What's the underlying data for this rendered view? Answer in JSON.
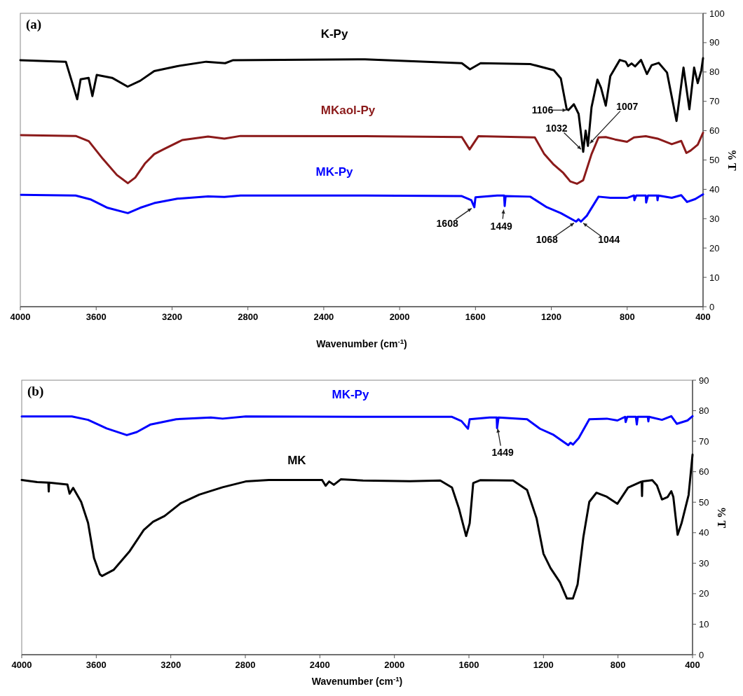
{
  "chart_data": [
    {
      "type": "line",
      "title": "(a)",
      "xlabel": "Wavenumber (cm$^{-1}$)",
      "ylabel": "% T",
      "xlim": [
        4000,
        400
      ],
      "xticks": [
        4000,
        3600,
        3200,
        2800,
        2400,
        2000,
        1600,
        1200,
        800,
        400
      ],
      "ylim": [
        0,
        100
      ],
      "yticks": [
        0,
        10,
        20,
        30,
        40,
        50,
        60,
        70,
        80,
        90,
        100
      ],
      "series": [
        {
          "name": "K-Py",
          "color": "#000000",
          "x": [
            4000,
            3760,
            3700,
            3682,
            3640,
            3620,
            3597,
            3516,
            3434,
            3368,
            3294,
            3172,
            3020,
            2920,
            2880,
            2182,
            1672,
            1629,
            1573,
            1311,
            1187,
            1150,
            1119,
            1110,
            1081,
            1056,
            1032,
            1019,
            1007,
            988,
            957,
            938,
            913,
            889,
            839,
            808,
            795,
            777,
            758,
            727,
            696,
            671,
            634,
            590,
            540,
            503,
            472,
            447,
            428,
            409,
            400
          ],
          "values": [
            84,
            83.5,
            70.7,
            77.5,
            78,
            71.8,
            79,
            78,
            75,
            77,
            80.3,
            82,
            83.5,
            83,
            84,
            84.3,
            83,
            80.9,
            83,
            82.7,
            80.6,
            77.8,
            67.3,
            67,
            69,
            65.7,
            52.8,
            60,
            54.8,
            68,
            77.4,
            74.6,
            68.5,
            78.6,
            84.1,
            83.5,
            82,
            82.9,
            81.9,
            84.1,
            79.3,
            82.3,
            83.1,
            79.8,
            63.3,
            81.5,
            67.3,
            81.5,
            76.2,
            80.6,
            84.7
          ]
        },
        {
          "name": "MKaol-Py",
          "color": "#8b1a1a",
          "x": [
            3996,
            3708,
            3639,
            3565,
            3491,
            3433,
            3394,
            3343,
            3294,
            3246,
            3146,
            3010,
            2924,
            2839,
            2182,
            1672,
            1631,
            1585,
            1287,
            1237,
            1187,
            1137,
            1100,
            1065,
            1032,
            988,
            951,
            913,
            864,
            801,
            764,
            702,
            640,
            565,
            515,
            488,
            466,
            428,
            400
          ],
          "values": [
            58.5,
            58.2,
            56.4,
            50.4,
            44.9,
            42.1,
            44,
            48.8,
            52,
            53.6,
            56.8,
            58,
            57.3,
            58.2,
            58.1,
            57.8,
            53.6,
            58.1,
            57.7,
            52,
            48.4,
            45.6,
            42.7,
            41.9,
            43.1,
            52,
            57.7,
            57.8,
            57,
            56.2,
            57.7,
            58.1,
            57.3,
            55.4,
            56.5,
            52.4,
            53.2,
            55.2,
            59.3
          ]
        },
        {
          "name": "MK-Py",
          "color": "#0000ff",
          "x": [
            3996,
            3708,
            3627,
            3540,
            3433,
            3368,
            3294,
            3172,
            3010,
            2924,
            2839,
            2182,
            1672,
            1622,
            1606,
            1600,
            1486,
            1449,
            1446,
            1441,
            1311,
            1224,
            1150,
            1069,
            1057,
            1044,
            1013,
            951,
            889,
            801,
            764,
            762,
            752,
            702,
            700,
            690,
            642,
            640,
            636,
            565,
            515,
            484,
            441,
            400
          ],
          "values": [
            38.1,
            37.9,
            36.5,
            33.7,
            31.9,
            33.7,
            35.3,
            36.8,
            37.6,
            37.4,
            37.9,
            37.9,
            37.7,
            36.3,
            33.9,
            37.3,
            37.9,
            37.9,
            34.3,
            37.7,
            37.5,
            33.9,
            31.9,
            29,
            29.8,
            29,
            31,
            37.5,
            37.1,
            37.1,
            37.9,
            36.3,
            37.9,
            37.9,
            35.5,
            37.9,
            37.9,
            36.3,
            37.9,
            37.1,
            38,
            35.7,
            36.7,
            38.3
          ]
        }
      ],
      "annotations": [
        {
          "text": "1106",
          "x": 1106,
          "y": 67
        },
        {
          "text": "1007",
          "x": 1007,
          "y": 55
        },
        {
          "text": "1032",
          "x": 1032,
          "y": 53
        },
        {
          "text": "1608",
          "x": 1608,
          "y": 34
        },
        {
          "text": "1449",
          "x": 1449,
          "y": 34
        },
        {
          "text": "1068",
          "x": 1068,
          "y": 29
        },
        {
          "text": "1044",
          "x": 1044,
          "y": 29
        }
      ]
    },
    {
      "type": "line",
      "title": "(b)",
      "xlabel": "Wavenumber (cm$^{-1}$)",
      "ylabel": "% T",
      "xlim": [
        4000,
        400
      ],
      "xticks": [
        4000,
        3600,
        3200,
        2800,
        2400,
        2000,
        1600,
        1200,
        800,
        400
      ],
      "ylim": [
        0,
        90
      ],
      "yticks": [
        0,
        10,
        20,
        30,
        40,
        50,
        60,
        70,
        80,
        90
      ],
      "series": [
        {
          "name": "MK-Py",
          "color": "#0000ff",
          "x": [
            4000,
            3731,
            3644,
            3544,
            3436,
            3382,
            3308,
            3171,
            2985,
            2922,
            2798,
            2169,
            1691,
            1640,
            1605,
            1596,
            1489,
            1451,
            1449,
            1441,
            1288,
            1219,
            1149,
            1067,
            1055,
            1042,
            1011,
            954,
            860,
            803,
            762,
            759,
            750,
            704,
            699,
            694,
            640,
            637,
            634,
            564,
            514,
            484,
            427,
            400
          ],
          "values": [
            78.1,
            78.1,
            77,
            74.2,
            72,
            73,
            75.5,
            77.2,
            77.8,
            77.4,
            78.1,
            78,
            78,
            76.6,
            74.1,
            77.2,
            77.8,
            77.8,
            74.3,
            77.8,
            77.2,
            74.1,
            72.2,
            68.7,
            69.5,
            68.9,
            71,
            77.2,
            77.4,
            76.8,
            78,
            76.3,
            78,
            78,
            75.5,
            78,
            78,
            76.5,
            78,
            77,
            78.2,
            75.7,
            76.8,
            78.2
          ]
        },
        {
          "name": "MK",
          "color": "#000000",
          "x": [
            4000,
            3917,
            3857,
            3855,
            3853,
            3755,
            3743,
            3724,
            3681,
            3644,
            3612,
            3581,
            3569,
            3507,
            3420,
            3345,
            3295,
            3233,
            3146,
            3047,
            2922,
            2798,
            2674,
            2388,
            2369,
            2350,
            2325,
            2288,
            2169,
            1917,
            1754,
            1691,
            1653,
            1615,
            1596,
            1577,
            1540,
            1363,
            1288,
            1237,
            1200,
            1162,
            1112,
            1074,
            1042,
            1017,
            986,
            954,
            916,
            860,
            803,
            746,
            677,
            673,
            671,
            669,
            616,
            591,
            564,
            534,
            514,
            503,
            480,
            459,
            421,
            400
          ],
          "values": [
            57.3,
            56.6,
            56.4,
            53.5,
            56.4,
            55.8,
            52.8,
            54.7,
            50.1,
            43.2,
            31.7,
            26.4,
            25.8,
            27.8,
            34,
            40.9,
            43.6,
            45.5,
            49.7,
            52.5,
            54.9,
            56.8,
            57.3,
            57.3,
            55.4,
            56.8,
            55.7,
            57.5,
            57.1,
            56.9,
            57.1,
            54.8,
            47.8,
            38.9,
            43.1,
            56.3,
            57.2,
            57.1,
            54,
            44.7,
            33.1,
            28.4,
            23.8,
            18.4,
            18.4,
            23,
            38.5,
            50.1,
            53.1,
            51.8,
            49.5,
            54.8,
            56.7,
            56.7,
            52,
            56.8,
            57.2,
            55.5,
            50.9,
            51.7,
            53.6,
            51.7,
            39.3,
            43.1,
            52.4,
            65.6
          ]
        }
      ],
      "annotations": [
        {
          "text": "1449",
          "x": 1449,
          "y": 75
        }
      ]
    }
  ]
}
